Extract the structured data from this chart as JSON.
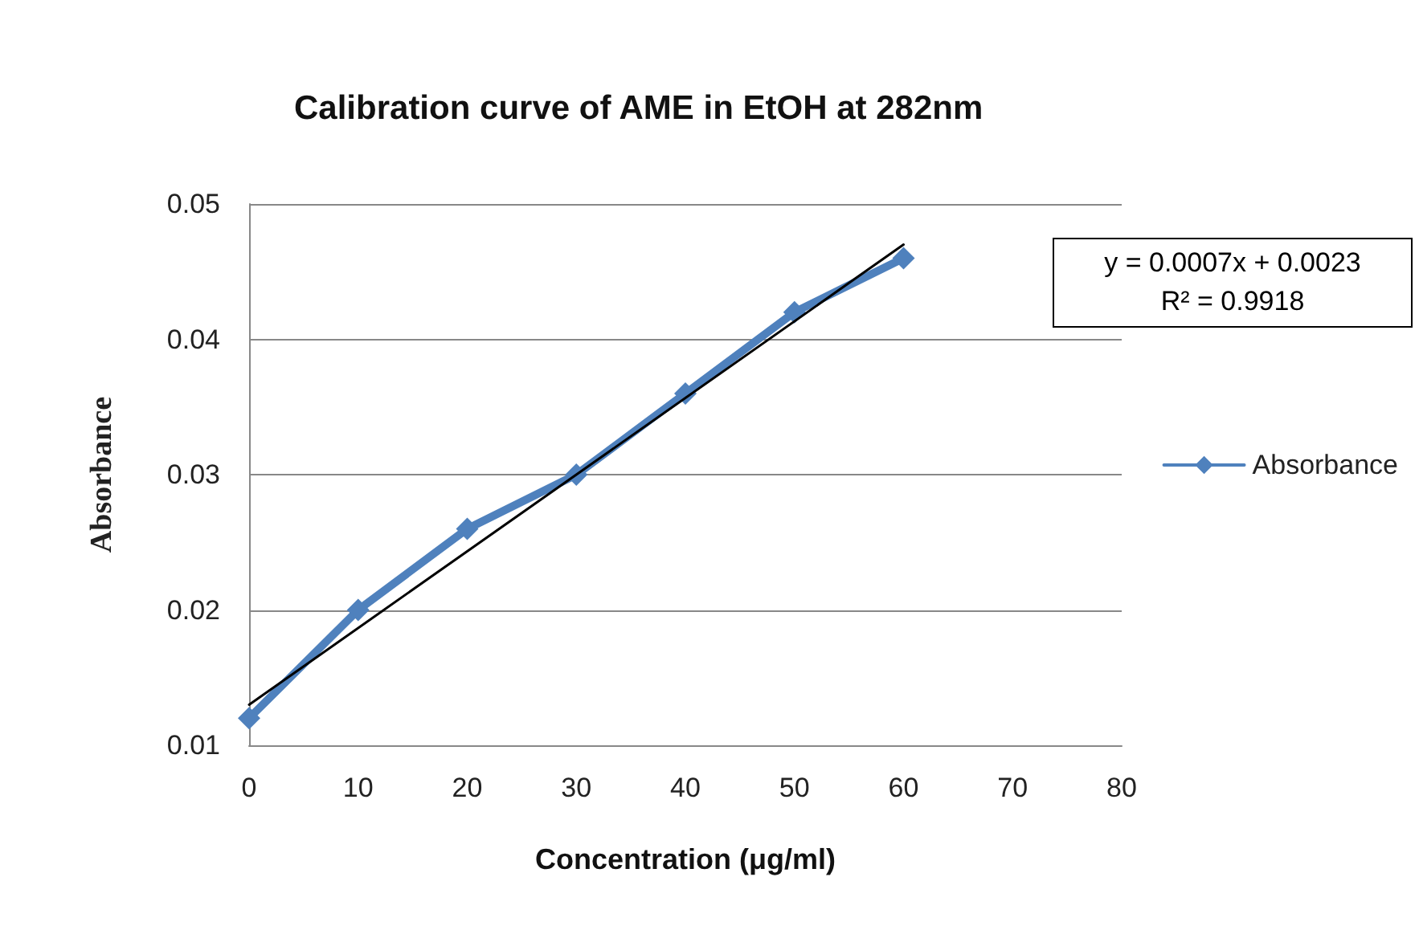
{
  "chart_data": {
    "type": "line",
    "title": "Calibration curve of AME in EtOH at 282nm",
    "xlabel": "Concentration (μg/ml)",
    "ylabel": "Absorbance",
    "x": [
      0,
      10,
      20,
      30,
      40,
      50,
      60
    ],
    "series": [
      {
        "name": "Absorbance",
        "color": "#4f81bd",
        "values": [
          0.012,
          0.02,
          0.026,
          0.03,
          0.036,
          0.042,
          0.046
        ]
      },
      {
        "type": "line",
        "color": "#000000",
        "marker": "none",
        "x": [
          0,
          60
        ],
        "values": [
          0.013,
          0.047
        ]
      }
    ],
    "xlim": [
      0,
      80
    ],
    "xticks": [
      0,
      10,
      20,
      30,
      40,
      50,
      60,
      70,
      80
    ],
    "ylim": [
      0.01,
      0.05
    ],
    "yticks": [
      0.01,
      0.02,
      0.03,
      0.04,
      0.05
    ],
    "grid": "y",
    "legend": "right",
    "marker": "diamond",
    "line_style": "solid",
    "annotations": [
      "y = 0.0007x + 0.0023",
      "R² = 0.9918"
    ]
  }
}
